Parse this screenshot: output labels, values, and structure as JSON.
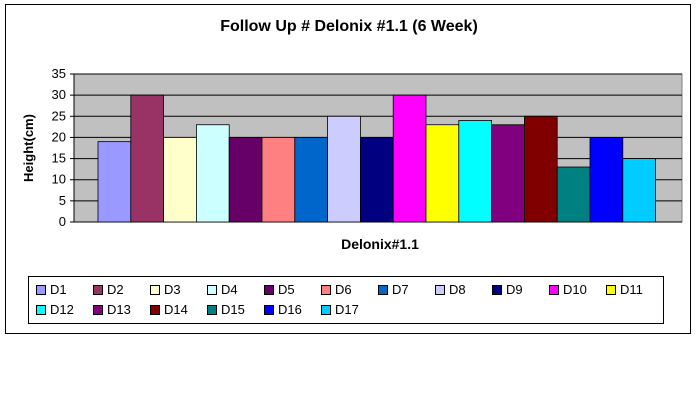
{
  "chart_data": {
    "type": "bar",
    "title": "Follow Up # Delonix #1.1 (6 Week)",
    "xlabel": "Delonix#1.1",
    "ylabel": "Height(cm)",
    "ylim": [
      0,
      35
    ],
    "yticks": [
      "0",
      "5",
      "10",
      "15",
      "20",
      "25",
      "30",
      "35"
    ],
    "grid": true,
    "legend_position": "bottom",
    "series": [
      {
        "name": "D1",
        "value": 19,
        "color": "#9999ff"
      },
      {
        "name": "D2",
        "value": 30,
        "color": "#993366"
      },
      {
        "name": "D3",
        "value": 20,
        "color": "#ffffcc"
      },
      {
        "name": "D4",
        "value": 23,
        "color": "#ccffff"
      },
      {
        "name": "D5",
        "value": 20,
        "color": "#660066"
      },
      {
        "name": "D6",
        "value": 20,
        "color": "#ff8080"
      },
      {
        "name": "D7",
        "value": 20,
        "color": "#0066cc"
      },
      {
        "name": "D8",
        "value": 25,
        "color": "#ccccff"
      },
      {
        "name": "D9",
        "value": 20,
        "color": "#000080"
      },
      {
        "name": "D10",
        "value": 30,
        "color": "#ff00ff"
      },
      {
        "name": "D11",
        "value": 23,
        "color": "#ffff00"
      },
      {
        "name": "D12",
        "value": 24,
        "color": "#00ffff"
      },
      {
        "name": "D13",
        "value": 23,
        "color": "#800080"
      },
      {
        "name": "D14",
        "value": 25,
        "color": "#800000"
      },
      {
        "name": "D15",
        "value": 13,
        "color": "#008080"
      },
      {
        "name": "D16",
        "value": 20,
        "color": "#0000ff"
      },
      {
        "name": "D17",
        "value": 15,
        "color": "#00ccff"
      }
    ],
    "plot_background": "#c0c0c0"
  }
}
